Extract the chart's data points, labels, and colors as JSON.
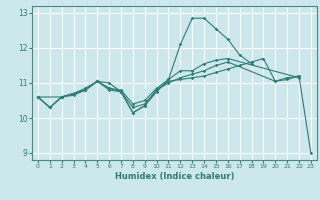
{
  "xlabel": "Humidex (Indice chaleur)",
  "xlim": [
    -0.5,
    23.5
  ],
  "ylim": [
    8.8,
    13.2
  ],
  "xticks": [
    0,
    1,
    2,
    3,
    4,
    5,
    6,
    7,
    8,
    9,
    10,
    11,
    12,
    13,
    14,
    15,
    16,
    17,
    18,
    19,
    20,
    21,
    22,
    23
  ],
  "yticks": [
    9,
    10,
    11,
    12,
    13
  ],
  "bg_color": "#cce8ec",
  "line_color": "#2e7d72",
  "grid_color": "#ffffff",
  "series": [
    {
      "x": [
        0,
        1,
        2,
        3,
        4,
        5,
        6,
        7,
        8,
        9,
        10,
        11,
        12,
        13,
        14,
        15,
        16,
        17,
        18
      ],
      "y": [
        10.6,
        10.3,
        10.6,
        10.7,
        10.8,
        11.05,
        10.8,
        10.75,
        10.15,
        10.35,
        10.75,
        11.1,
        12.1,
        12.85,
        12.85,
        12.55,
        12.25,
        11.8,
        11.55
      ]
    },
    {
      "x": [
        0,
        1,
        2,
        3,
        4,
        5,
        6,
        7,
        8,
        9,
        10,
        11,
        12,
        13,
        14,
        15,
        16,
        22
      ],
      "y": [
        10.6,
        10.3,
        10.6,
        10.65,
        10.8,
        11.05,
        10.85,
        10.8,
        10.4,
        10.5,
        10.85,
        11.1,
        11.35,
        11.35,
        11.55,
        11.65,
        11.7,
        11.15
      ]
    },
    {
      "x": [
        0,
        2,
        3,
        4,
        5,
        6,
        7,
        8,
        9,
        10,
        11,
        12,
        13,
        14,
        15,
        16,
        20,
        21,
        22
      ],
      "y": [
        10.6,
        10.6,
        10.7,
        10.85,
        11.05,
        11.0,
        10.75,
        10.3,
        10.4,
        10.8,
        11.0,
        11.15,
        11.25,
        11.35,
        11.5,
        11.6,
        11.05,
        11.1,
        11.2
      ]
    },
    {
      "x": [
        0,
        1,
        2,
        3,
        4,
        5,
        6,
        7,
        8,
        9,
        10,
        11,
        12,
        13,
        14,
        15,
        16,
        17,
        18,
        19,
        20,
        21,
        22,
        23
      ],
      "y": [
        10.6,
        10.3,
        10.6,
        10.7,
        10.8,
        11.05,
        10.85,
        10.75,
        10.15,
        10.35,
        10.8,
        11.05,
        11.1,
        11.15,
        11.2,
        11.3,
        11.4,
        11.5,
        11.6,
        11.7,
        11.05,
        11.15,
        11.2,
        9.0
      ]
    }
  ]
}
